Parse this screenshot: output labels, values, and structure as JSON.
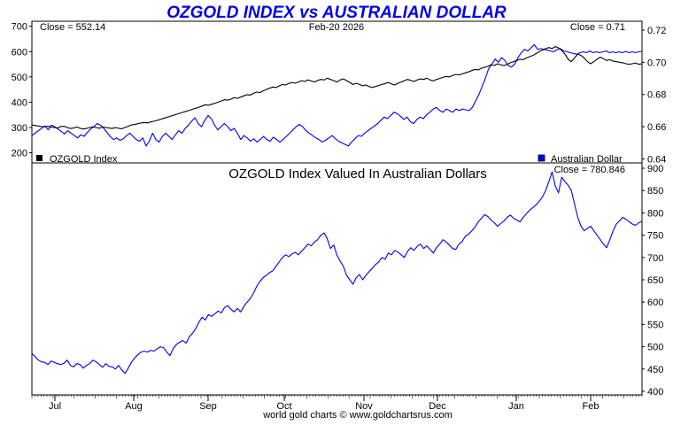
{
  "header": {
    "title": "OZGOLD INDEX vs AUSTRALIAN DOLLAR",
    "title_color": "#0000ee",
    "date": "Feb-20  2026",
    "footer": "world gold charts © www.goldchartsrus.com"
  },
  "chart_data": [
    {
      "type": "line",
      "panel": "top",
      "close_left": "Close = 552.14",
      "close_right": "Close = 0.71",
      "legend_left": "OZGOLD Index",
      "legend_right": "Australian Dollar",
      "x_labels": [
        "Jul",
        "Aug",
        "Sep",
        "Oct",
        "Nov",
        "Dec",
        "Jan",
        "Feb"
      ],
      "y_left": {
        "ticks": [
          200,
          300,
          400,
          500,
          600,
          700
        ],
        "range": [
          160,
          720
        ]
      },
      "y_right": {
        "ticks": [
          0.64,
          0.66,
          0.68,
          0.7,
          0.72
        ],
        "range": [
          0.6375,
          0.7255
        ]
      },
      "series": [
        {
          "name": "OZGOLD Index",
          "axis": "left",
          "color": "#000000",
          "values": [
            310,
            308,
            306,
            304,
            303,
            305,
            302,
            300,
            298,
            304,
            305,
            300,
            296,
            298,
            302,
            297,
            294,
            296,
            300,
            303,
            300,
            297,
            302,
            300,
            298,
            296,
            300,
            297,
            295,
            300,
            305,
            310,
            312,
            315,
            318,
            320,
            318,
            322,
            325,
            328,
            332,
            336,
            340,
            344,
            348,
            352,
            356,
            360,
            364,
            368,
            372,
            376,
            380,
            385,
            390,
            388,
            392,
            396,
            400,
            405,
            410,
            408,
            412,
            418,
            415,
            420,
            425,
            430,
            428,
            435,
            440,
            438,
            445,
            450,
            455,
            460,
            458,
            464,
            470,
            468,
            474,
            478,
            475,
            480,
            485,
            482,
            488,
            484,
            480,
            486,
            490,
            488,
            495,
            490,
            485,
            480,
            488,
            492,
            485,
            478,
            470,
            475,
            470,
            465,
            468,
            462,
            458,
            462,
            466,
            470,
            474,
            478,
            472,
            468,
            475,
            480,
            485,
            490,
            486,
            482,
            488,
            492,
            490,
            495,
            488,
            484,
            490,
            494,
            498,
            502,
            500,
            505,
            510,
            508,
            512,
            516,
            520,
            525,
            530,
            528,
            534,
            538,
            542,
            548,
            545,
            552,
            548,
            545,
            550,
            556,
            560,
            565,
            570,
            568,
            575,
            580,
            585,
            592,
            600,
            606,
            612,
            616,
            612,
            620,
            615,
            605,
            590,
            570,
            560,
            575,
            590,
            585,
            575,
            560,
            552,
            560,
            570,
            578,
            572,
            565,
            568,
            562,
            560,
            558,
            556,
            552,
            550,
            552,
            555,
            550,
            552
          ]
        },
        {
          "name": "Australian Dollar",
          "axis": "right",
          "color": "#0000ee",
          "values": [
            0.6545,
            0.656,
            0.6575,
            0.659,
            0.6605,
            0.658,
            0.661,
            0.66,
            0.6585,
            0.657,
            0.6555,
            0.6575,
            0.656,
            0.6545,
            0.653,
            0.655,
            0.654,
            0.6565,
            0.6585,
            0.66,
            0.662,
            0.661,
            0.659,
            0.6565,
            0.654,
            0.652,
            0.653,
            0.6515,
            0.6525,
            0.6545,
            0.656,
            0.654,
            0.652,
            0.651,
            0.653,
            0.648,
            0.651,
            0.656,
            0.652,
            0.6505,
            0.654,
            0.656,
            0.654,
            0.652,
            0.655,
            0.6575,
            0.656,
            0.659,
            0.661,
            0.6635,
            0.6655,
            0.662,
            0.66,
            0.664,
            0.667,
            0.665,
            0.661,
            0.658,
            0.66,
            0.662,
            0.66,
            0.6575,
            0.659,
            0.656,
            0.652,
            0.6545,
            0.653,
            0.651,
            0.6525,
            0.6505,
            0.652,
            0.654,
            0.652,
            0.651,
            0.6535,
            0.652,
            0.6505,
            0.652,
            0.654,
            0.656,
            0.658,
            0.66,
            0.6615,
            0.66,
            0.6575,
            0.656,
            0.6545,
            0.653,
            0.652,
            0.6505,
            0.6515,
            0.653,
            0.6545,
            0.6525,
            0.651,
            0.65,
            0.649,
            0.648,
            0.6505,
            0.6525,
            0.6545,
            0.654,
            0.656,
            0.6575,
            0.659,
            0.6605,
            0.662,
            0.664,
            0.666,
            0.665,
            0.667,
            0.669,
            0.668,
            0.6665,
            0.6645,
            0.666,
            0.663,
            0.662,
            0.6645,
            0.666,
            0.665,
            0.6675,
            0.669,
            0.671,
            0.672,
            0.67,
            0.669,
            0.671,
            0.67,
            0.669,
            0.671,
            0.67,
            0.671,
            0.6705,
            0.67,
            0.672,
            0.676,
            0.68,
            0.685,
            0.69,
            0.696,
            0.699,
            0.702,
            0.7,
            0.703,
            0.701,
            0.698,
            0.697,
            0.699,
            0.703,
            0.706,
            0.708,
            0.707,
            0.709,
            0.711,
            0.708,
            0.7085,
            0.708,
            0.7075,
            0.707,
            0.7065,
            0.708,
            0.7085,
            0.707,
            0.7065,
            0.706,
            0.7055,
            0.705,
            0.706,
            0.7065,
            0.706,
            0.707,
            0.706,
            0.7065,
            0.706,
            0.7065,
            0.707,
            0.706,
            0.7065,
            0.706,
            0.7065,
            0.706,
            0.7068,
            0.706,
            0.7065,
            0.706,
            0.7065,
            0.7068
          ]
        }
      ]
    },
    {
      "type": "line",
      "panel": "bottom",
      "title": "OZGOLD Index Valued In Australian Dollars",
      "close_right": "Close = 780.846",
      "y_right": {
        "ticks": [
          400,
          450,
          500,
          550,
          600,
          650,
          700,
          750,
          800,
          850,
          900
        ],
        "range": [
          392,
          912
        ]
      },
      "series": [
        {
          "name": "OZGOLD Index Valued In Australian Dollars",
          "axis": "right",
          "color": "#0000ee",
          "values": [
            485,
            478,
            470,
            466,
            465,
            460,
            468,
            465,
            462,
            460,
            463,
            470,
            458,
            455,
            462,
            460,
            452,
            458,
            462,
            470,
            466,
            460,
            454,
            462,
            456,
            455,
            450,
            458,
            448,
            440,
            452,
            465,
            475,
            482,
            488,
            490,
            488,
            492,
            490,
            495,
            500,
            498,
            488,
            480,
            496,
            505,
            510,
            514,
            508,
            522,
            530,
            540,
            555,
            566,
            560,
            572,
            568,
            574,
            580,
            576,
            588,
            592,
            584,
            578,
            586,
            578,
            590,
            600,
            608,
            620,
            635,
            646,
            655,
            660,
            666,
            670,
            680,
            690,
            700,
            706,
            702,
            708,
            712,
            706,
            714,
            722,
            730,
            726,
            735,
            740,
            750,
            755,
            742,
            720,
            728,
            705,
            692,
            680,
            660,
            650,
            640,
            655,
            662,
            650,
            660,
            668,
            676,
            684,
            690,
            700,
            696,
            710,
            706,
            716,
            712,
            706,
            700,
            714,
            722,
            716,
            725,
            730,
            720,
            726,
            718,
            710,
            722,
            730,
            740,
            735,
            728,
            720,
            718,
            730,
            736,
            748,
            752,
            760,
            768,
            780,
            788,
            796,
            792,
            784,
            778,
            770,
            776,
            782,
            790,
            795,
            788,
            784,
            780,
            790,
            798,
            806,
            812,
            818,
            826,
            836,
            850,
            870,
            892,
            860,
            845,
            880,
            870,
            862,
            850,
            820,
            790,
            770,
            760,
            765,
            770,
            760,
            750,
            740,
            730,
            722,
            740,
            760,
            775,
            782,
            790,
            786,
            780,
            775,
            772,
            778,
            781
          ]
        }
      ]
    }
  ]
}
